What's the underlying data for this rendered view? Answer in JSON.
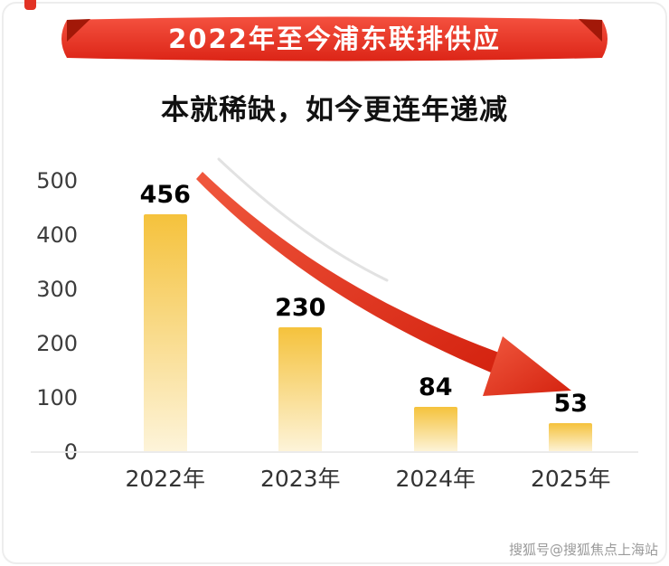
{
  "banner": {
    "title": "2022年至今浦东联排供应",
    "band_color_top": "#f4513f",
    "band_color_bottom": "#dc2517",
    "fold_color": "#a21808"
  },
  "subtitle": "本就稀缺，如今更连年递减",
  "watermark": "搜狐号@搜狐焦点上海站",
  "chart_data": {
    "type": "bar",
    "title": "2022年至今浦东联排供应",
    "subtitle": "本就稀缺，如今更连年递减",
    "categories": [
      "2022年",
      "2023年",
      "2024年",
      "2025年"
    ],
    "values": [
      456,
      230,
      84,
      53
    ],
    "xlabel": "",
    "ylabel": "",
    "ylim": [
      0,
      500
    ],
    "yticks": [
      0,
      100,
      200,
      300,
      400,
      500
    ],
    "grid": false,
    "legend": false,
    "bar_color_top": "#f5c23c",
    "bar_color_bottom": "#fdf4da",
    "trend_arrow": {
      "direction": "down-right",
      "color": "#e0301f"
    }
  }
}
